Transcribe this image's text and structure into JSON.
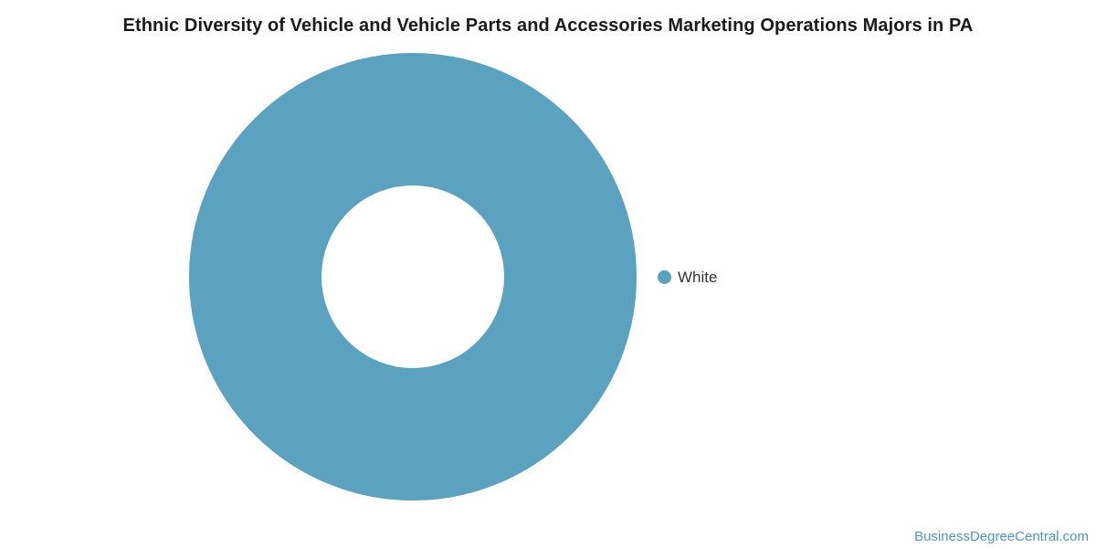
{
  "chart_data": {
    "type": "pie",
    "variant": "donut",
    "title": "Ethnic Diversity of Vehicle and Vehicle Parts and Accessories Marketing Operations Majors in PA",
    "labels": [
      "White"
    ],
    "values": [
      100
    ],
    "unit": "percent",
    "colors": [
      "#5BA1C0"
    ],
    "inner_radius_ratio": 0.41,
    "legend_position": "right",
    "background": "#FFFFFF",
    "title_color": "#1A1A1A",
    "legend_text_color": "#333333"
  },
  "watermark": {
    "text": "BusinessDegreeCentral.com",
    "color": "#4E95C0"
  }
}
